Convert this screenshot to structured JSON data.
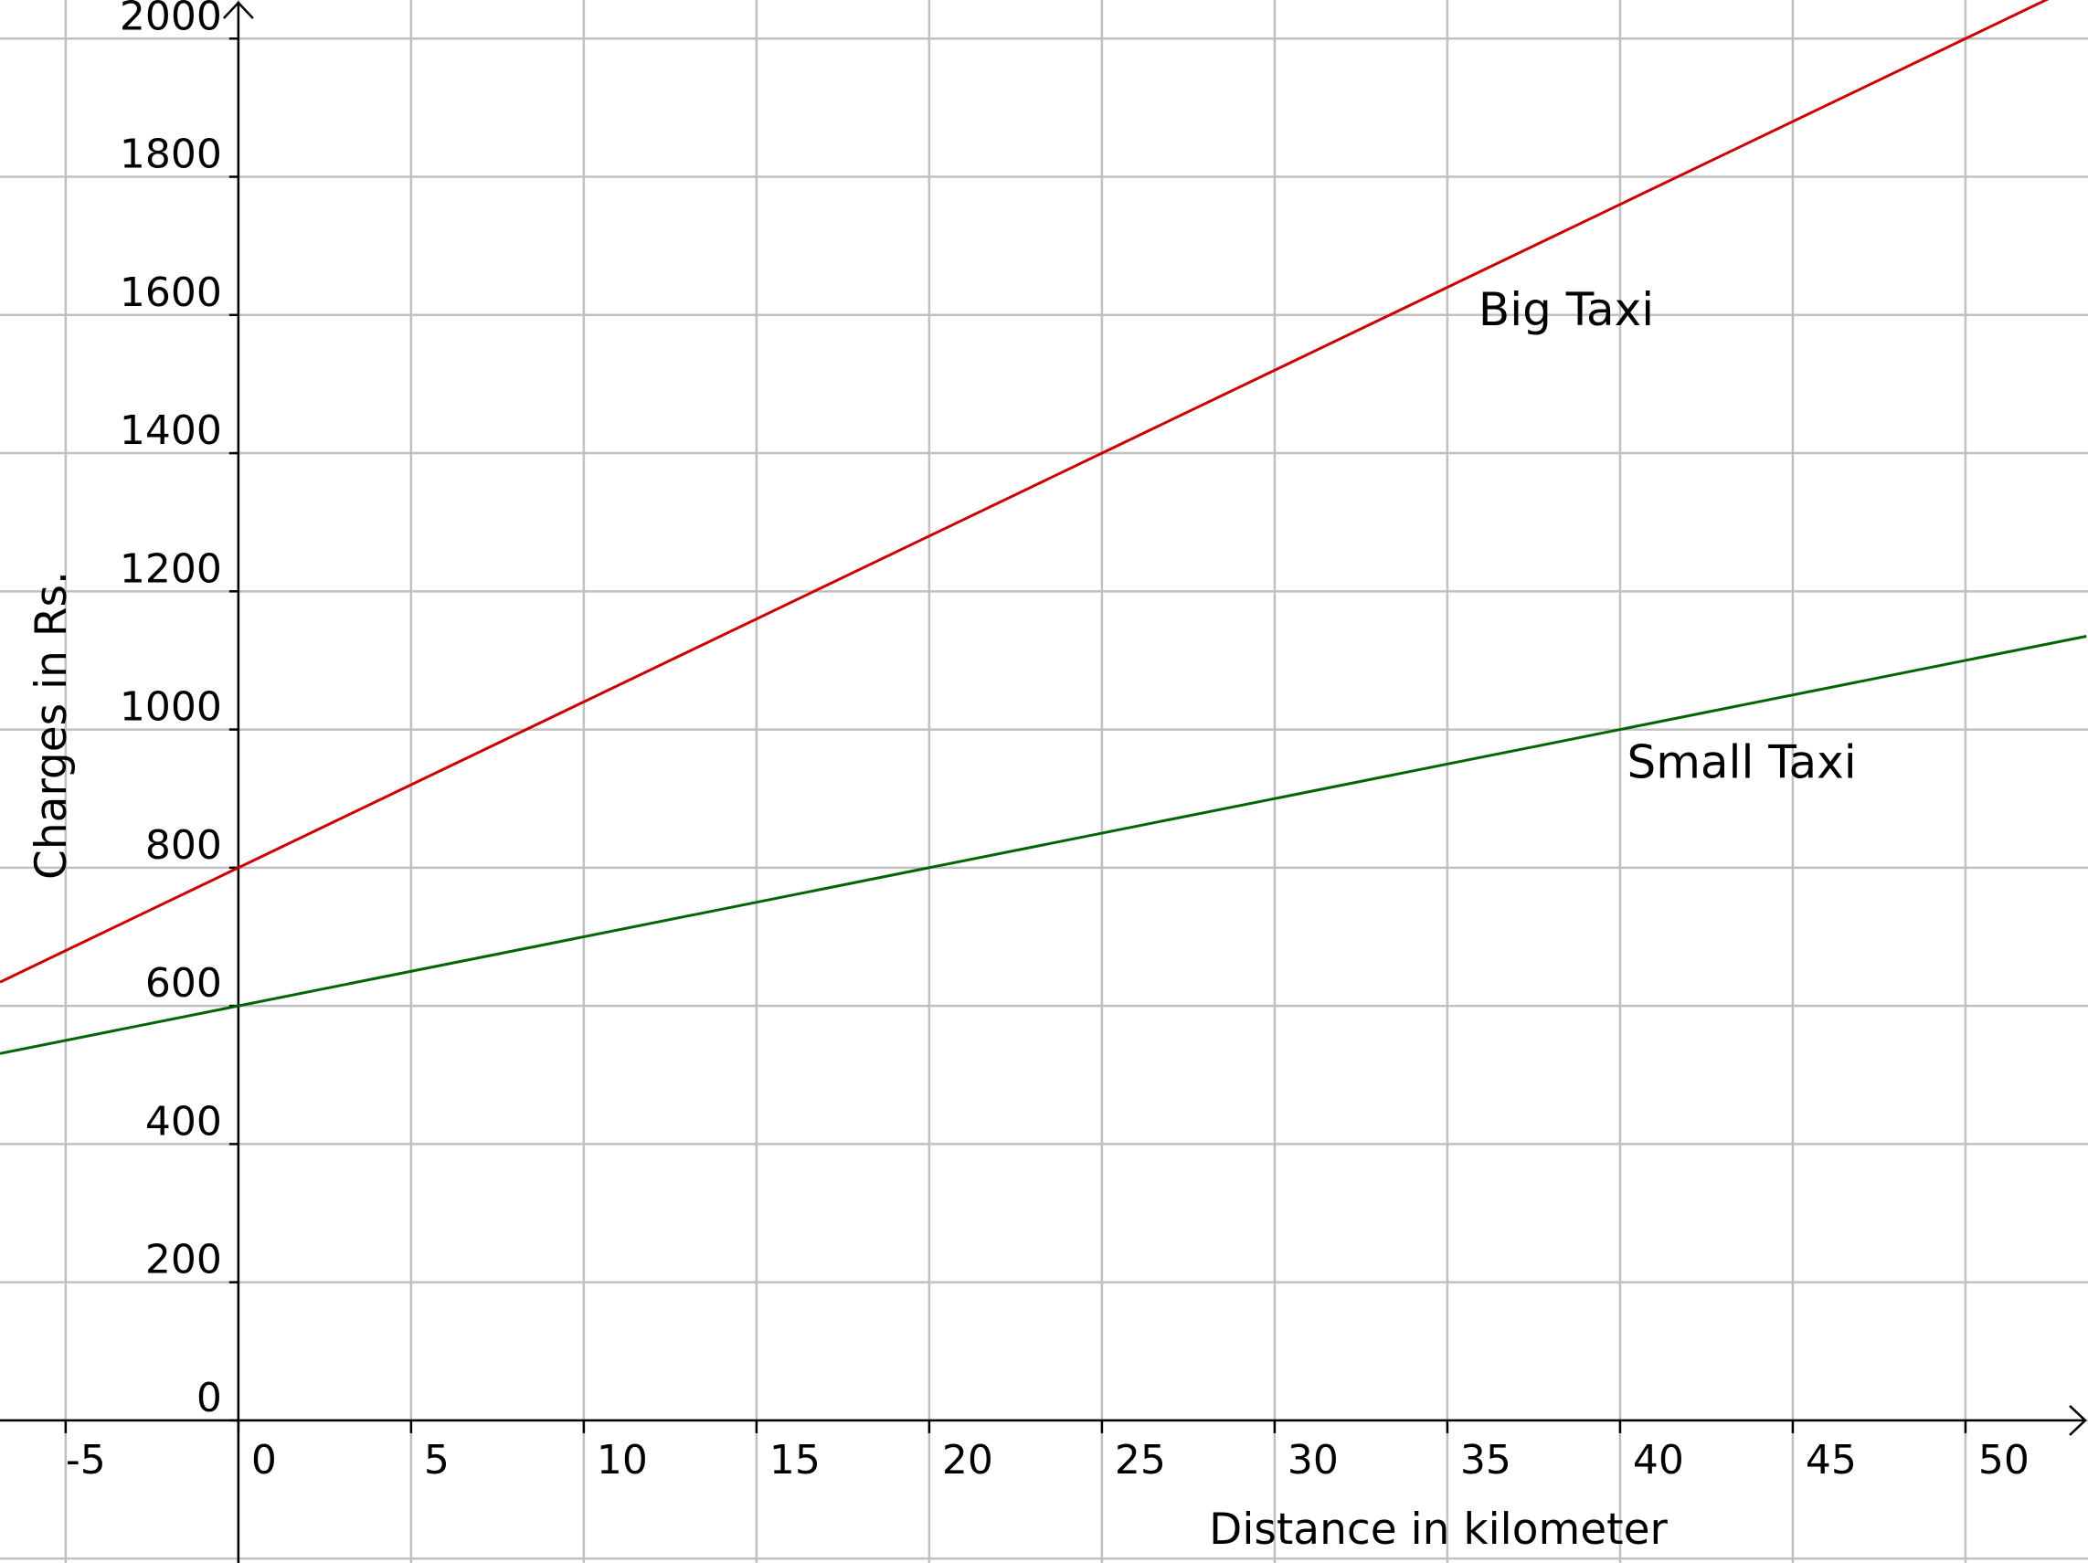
{
  "chart_data": {
    "type": "line",
    "xlabel": "Distance in kilometer",
    "ylabel": "Charges in Rs.",
    "xlim": [
      -6.9,
      53.5
    ],
    "ylim": [
      -98,
      2056
    ],
    "x_ticks": [
      -5,
      0,
      5,
      10,
      15,
      20,
      25,
      30,
      35,
      40,
      45,
      50
    ],
    "y_ticks": [
      0,
      200,
      400,
      600,
      800,
      1000,
      1200,
      1400,
      1600,
      1800,
      2000
    ],
    "grid": true,
    "series": [
      {
        "name": "Big Taxi",
        "color": "#cc0000",
        "x": [
          -6.9,
          0,
          50,
          53.5
        ],
        "y": [
          634.4,
          800,
          2000,
          2084
        ]
      },
      {
        "name": "Small Taxi",
        "color": "#006400",
        "x": [
          -6.9,
          0,
          40,
          53.5
        ],
        "y": [
          531,
          600,
          1000,
          1135
        ]
      }
    ]
  }
}
